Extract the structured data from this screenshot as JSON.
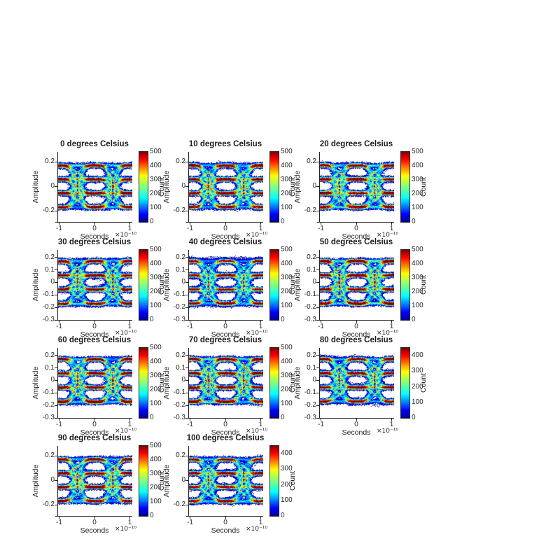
{
  "figure": {
    "background": "#ffffff",
    "text_color": "#262626",
    "axis_color": "#222222"
  },
  "chart_data": {
    "type": "heatmap",
    "subtype": "eye-diagram-2d-histogram-grid",
    "colormap": "jet",
    "colormap_stops": [
      "#00008f",
      "#0000ff",
      "#00ffff",
      "#80ff80",
      "#ffff00",
      "#ff0000",
      "#800000"
    ],
    "grid": {
      "rows": 4,
      "cols": 3,
      "count": 11
    },
    "xlabel": "Seconds",
    "x_exponent": "×10⁻¹⁰",
    "ylabel": "Amplitude",
    "colorbar_label": "Count",
    "xlim": [
      -1.05,
      1.05
    ],
    "xtick_labels": [
      "-1",
      "0",
      "1"
    ],
    "xtick_values": [
      -1,
      0,
      1
    ],
    "signal_levels": [
      -0.17,
      -0.0567,
      0.0567,
      0.17
    ],
    "subplots": [
      {
        "title": "0 degrees Celsius",
        "ylim": [
          -0.29,
          0.28
        ],
        "ytick_labels": [
          "0.2",
          "0",
          "-0.2"
        ],
        "ytick_values": [
          0.2,
          0,
          -0.2
        ],
        "cmax": 500,
        "colorbar_tick_labels": [
          "0",
          "100",
          "200",
          "300",
          "400",
          "500"
        ],
        "colorbar_tick_values": [
          0,
          100,
          200,
          300,
          400,
          500
        ]
      },
      {
        "title": "10 degrees Celsius",
        "ylim": [
          -0.29,
          0.28
        ],
        "ytick_labels": [
          "0.2",
          "0",
          "-0.2"
        ],
        "ytick_values": [
          0.2,
          0,
          -0.2
        ],
        "cmax": 500,
        "colorbar_tick_labels": [
          "0",
          "100",
          "200",
          "300",
          "400",
          "500"
        ],
        "colorbar_tick_values": [
          0,
          100,
          200,
          300,
          400,
          500
        ]
      },
      {
        "title": "20 degrees Celsius",
        "ylim": [
          -0.29,
          0.28
        ],
        "ytick_labels": [
          "0.2",
          "0",
          "-0.2"
        ],
        "ytick_values": [
          0.2,
          0,
          -0.2
        ],
        "cmax": 500,
        "colorbar_tick_labels": [
          "0",
          "100",
          "200",
          "300",
          "400",
          "500"
        ],
        "colorbar_tick_values": [
          0,
          100,
          200,
          300,
          400,
          500
        ]
      },
      {
        "title": "30 degrees Celsius",
        "ylim": [
          -0.3,
          0.26
        ],
        "ytick_labels": [
          "0.2",
          "0.1",
          "0",
          "-0.1",
          "-0.2",
          "-0.3"
        ],
        "ytick_values": [
          0.2,
          0.1,
          0,
          -0.1,
          -0.2,
          -0.3
        ],
        "cmax": 500,
        "colorbar_tick_labels": [
          "0",
          "100",
          "200",
          "300",
          "400",
          "500"
        ],
        "colorbar_tick_values": [
          0,
          100,
          200,
          300,
          400,
          500
        ]
      },
      {
        "title": "40 degrees Celsius",
        "ylim": [
          -0.3,
          0.26
        ],
        "ytick_labels": [
          "0.2",
          "0.1",
          "0",
          "-0.1",
          "-0.2",
          "-0.3"
        ],
        "ytick_values": [
          0.2,
          0.1,
          0,
          -0.1,
          -0.2,
          -0.3
        ],
        "cmax": 500,
        "colorbar_tick_labels": [
          "0",
          "100",
          "200",
          "300",
          "400",
          "500"
        ],
        "colorbar_tick_values": [
          0,
          100,
          200,
          300,
          400,
          500
        ]
      },
      {
        "title": "50 degrees Celsius",
        "ylim": [
          -0.3,
          0.26
        ],
        "ytick_labels": [
          "0.2",
          "0.1",
          "0",
          "-0.1",
          "-0.2",
          "-0.3"
        ],
        "ytick_values": [
          0.2,
          0.1,
          0,
          -0.1,
          -0.2,
          -0.3
        ],
        "cmax": 500,
        "colorbar_tick_labels": [
          "0",
          "100",
          "200",
          "300",
          "400",
          "500"
        ],
        "colorbar_tick_values": [
          0,
          100,
          200,
          300,
          400,
          500
        ]
      },
      {
        "title": "60 degrees Celsius",
        "ylim": [
          -0.3,
          0.26
        ],
        "ytick_labels": [
          "0.2",
          "0.1",
          "0",
          "-0.1",
          "-0.2",
          "-0.3"
        ],
        "ytick_values": [
          0.2,
          0.1,
          0,
          -0.1,
          -0.2,
          -0.3
        ],
        "cmax": 500,
        "colorbar_tick_labels": [
          "0",
          "100",
          "200",
          "300",
          "400",
          "500"
        ],
        "colorbar_tick_values": [
          0,
          100,
          200,
          300,
          400,
          500
        ]
      },
      {
        "title": "70 degrees Celsius",
        "ylim": [
          -0.3,
          0.26
        ],
        "ytick_labels": [
          "0.2",
          "0.1",
          "0",
          "-0.1",
          "-0.2",
          "-0.3"
        ],
        "ytick_values": [
          0.2,
          0.1,
          0,
          -0.1,
          -0.2,
          -0.3
        ],
        "cmax": 500,
        "colorbar_tick_labels": [
          "0",
          "100",
          "200",
          "300",
          "400",
          "500"
        ],
        "colorbar_tick_values": [
          0,
          100,
          200,
          300,
          400,
          500
        ]
      },
      {
        "title": "80 degrees Celsius",
        "ylim": [
          -0.3,
          0.26
        ],
        "ytick_labels": [
          "0.2",
          "0.1",
          "0",
          "-0.1",
          "-0.2",
          "-0.3"
        ],
        "ytick_values": [
          0.2,
          0.1,
          0,
          -0.1,
          -0.2,
          -0.3
        ],
        "cmax": 450,
        "colorbar_tick_labels": [
          "0",
          "100",
          "200",
          "300",
          "400"
        ],
        "colorbar_tick_values": [
          0,
          100,
          200,
          300,
          400
        ]
      },
      {
        "title": "90 degrees Celsius",
        "ylim": [
          -0.29,
          0.28
        ],
        "ytick_labels": [
          "0.2",
          "0",
          "-0.2"
        ],
        "ytick_values": [
          0.2,
          0,
          -0.2
        ],
        "cmax": 500,
        "colorbar_tick_labels": [
          "0",
          "100",
          "200",
          "300",
          "400",
          "500"
        ],
        "colorbar_tick_values": [
          0,
          100,
          200,
          300,
          400,
          500
        ]
      },
      {
        "title": "100 degrees Celsius",
        "ylim": [
          -0.29,
          0.28
        ],
        "ytick_labels": [
          "0.2",
          "0",
          "-0.2"
        ],
        "ytick_values": [
          0.2,
          0,
          -0.2
        ],
        "cmax": 450,
        "colorbar_tick_labels": [
          "0",
          "100",
          "200",
          "300",
          "400"
        ],
        "colorbar_tick_values": [
          0,
          100,
          200,
          300,
          400
        ]
      }
    ]
  }
}
